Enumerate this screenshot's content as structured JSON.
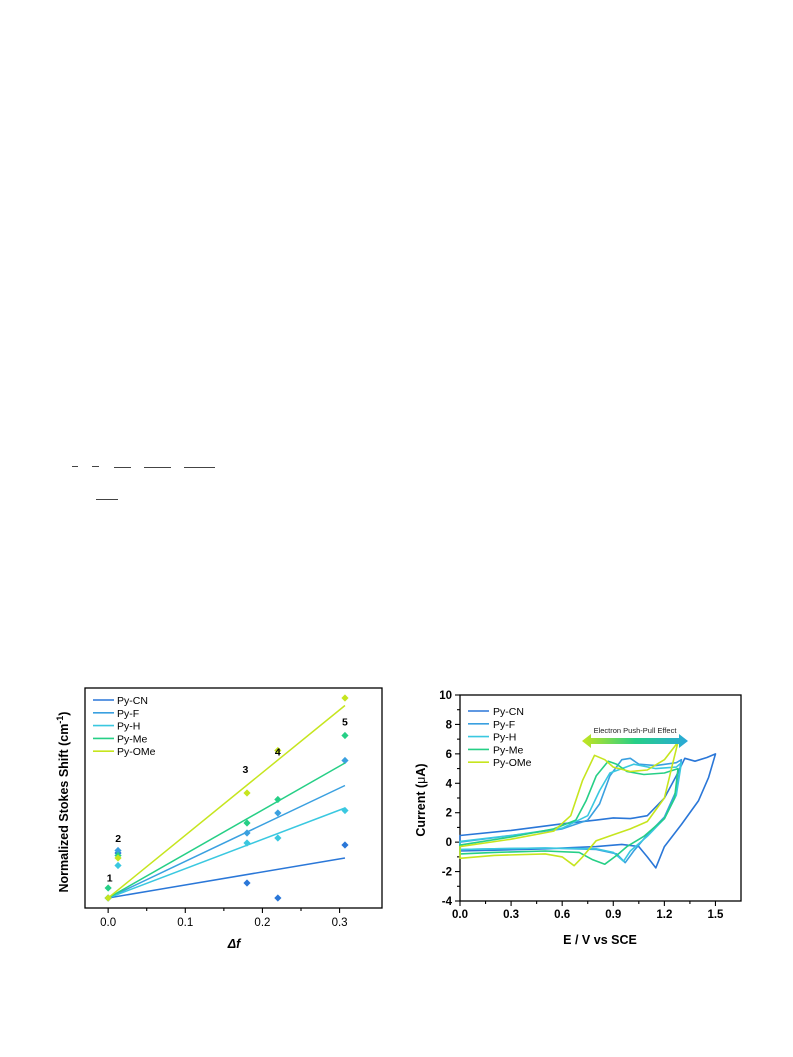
{
  "chart_data": [
    {
      "type": "scatter",
      "title": "",
      "xlabel": "Δf",
      "ylabel": "Normalized Stokes Shift (cm-1)",
      "ylabel_main": "Normalized Stokes Shift (cm",
      "ylabel_sup": "-1",
      "ylabel_end": ")",
      "xlim": [
        -0.03,
        0.355
      ],
      "ylim": [
        -0.02,
        0.42
      ],
      "xticks": [
        "0.0",
        "0.1",
        "0.2",
        "0.3"
      ],
      "legend_placement": "top-left",
      "point_labels": [
        {
          "text": "1",
          "x": 0.002,
          "y": 0.033
        },
        {
          "text": "2",
          "x": 0.013,
          "y": 0.112
        },
        {
          "text": "3",
          "x": 0.178,
          "y": 0.25
        },
        {
          "text": "4",
          "x": 0.22,
          "y": 0.285
        },
        {
          "text": "5",
          "x": 0.307,
          "y": 0.345
        }
      ],
      "series": [
        {
          "name": "Py-CN",
          "color": "#2a77d8",
          "x": [
            0.0,
            0.0128,
            0.18,
            0.22,
            0.307
          ],
          "y": [
            0.0,
            0.09,
            0.03,
            0.0,
            0.106
          ],
          "fit": [
            [
              0.0,
              0.0
            ],
            [
              0.307,
              0.08
            ]
          ]
        },
        {
          "name": "Py-F",
          "color": "#3aa0e0",
          "x": [
            0.0,
            0.0128,
            0.18,
            0.22,
            0.307
          ],
          "y": [
            0.0,
            0.095,
            0.13,
            0.17,
            0.275
          ],
          "fit": [
            [
              0.0,
              0.0
            ],
            [
              0.307,
              0.225
            ]
          ]
        },
        {
          "name": "Py-H",
          "color": "#3ac8e0",
          "x": [
            0.0,
            0.0128,
            0.18,
            0.22,
            0.307
          ],
          "y": [
            0.0,
            0.065,
            0.11,
            0.12,
            0.175
          ],
          "fit": [
            [
              0.0,
              0.0
            ],
            [
              0.307,
              0.18
            ]
          ]
        },
        {
          "name": "Py-Me",
          "color": "#26cf86",
          "x": [
            0.0,
            0.0128,
            0.18,
            0.22,
            0.307
          ],
          "y": [
            0.02,
            0.085,
            0.15,
            0.197,
            0.325
          ],
          "fit": [
            [
              0.0,
              0.0
            ],
            [
              0.307,
              0.27
            ]
          ]
        },
        {
          "name": "Py-OMe",
          "color": "#c6e51e",
          "x": [
            0.0,
            0.0128,
            0.18,
            0.22,
            0.307
          ],
          "y": [
            0.0,
            0.08,
            0.21,
            0.295,
            0.4
          ],
          "fit": [
            [
              0.0,
              0.0
            ],
            [
              0.307,
              0.385
            ]
          ]
        }
      ]
    },
    {
      "type": "line",
      "title": "",
      "xlabel": "E / V vs SCE",
      "ylabel": "Current (μA)",
      "ylabel_pre": "Current (",
      "ylabel_greek": "μ",
      "ylabel_post": "A)",
      "xlim": [
        0.0,
        1.65
      ],
      "ylim": [
        -4,
        10
      ],
      "xticks": [
        "0.0",
        "0.3",
        "0.6",
        "0.9",
        "1.2",
        "1.5"
      ],
      "yticks": [
        "-4",
        "-2",
        "0",
        "2",
        "4",
        "6",
        "8",
        "10"
      ],
      "annotation": "Electron Push-Pull Effect",
      "legend_placement": "top-left",
      "series": [
        {
          "name": "Py-CN",
          "color": "#2a77d8",
          "points": [
            [
              0.0,
              0.45
            ],
            [
              0.3,
              0.8
            ],
            [
              0.6,
              1.25
            ],
            [
              0.8,
              1.5
            ],
            [
              0.9,
              1.65
            ],
            [
              1.0,
              1.6
            ],
            [
              1.1,
              1.8
            ],
            [
              1.2,
              3.0
            ],
            [
              1.27,
              4.5
            ],
            [
              1.32,
              5.7
            ],
            [
              1.38,
              5.5
            ],
            [
              1.45,
              5.75
            ],
            [
              1.5,
              6.0
            ],
            [
              1.46,
              4.4
            ],
            [
              1.4,
              2.8
            ],
            [
              1.3,
              1.2
            ],
            [
              1.2,
              -0.3
            ],
            [
              1.15,
              -1.75
            ],
            [
              1.1,
              -1.0
            ],
            [
              1.05,
              -0.3
            ],
            [
              0.95,
              -0.15
            ],
            [
              0.8,
              -0.3
            ],
            [
              0.5,
              -0.45
            ],
            [
              0.2,
              -0.55
            ],
            [
              0.0,
              -0.6
            ]
          ]
        },
        {
          "name": "Py-F",
          "color": "#3aa0e0",
          "points": [
            [
              0.0,
              0.0
            ],
            [
              0.3,
              0.45
            ],
            [
              0.6,
              0.9
            ],
            [
              0.75,
              1.5
            ],
            [
              0.82,
              2.6
            ],
            [
              0.88,
              4.5
            ],
            [
              0.95,
              5.6
            ],
            [
              1.0,
              5.7
            ],
            [
              1.05,
              5.3
            ],
            [
              1.15,
              5.2
            ],
            [
              1.27,
              5.4
            ],
            [
              1.3,
              5.6
            ],
            [
              1.27,
              3.5
            ],
            [
              1.2,
              1.7
            ],
            [
              1.1,
              0.5
            ],
            [
              1.02,
              -0.6
            ],
            [
              0.97,
              -1.4
            ],
            [
              0.92,
              -0.8
            ],
            [
              0.8,
              -0.5
            ],
            [
              0.5,
              -0.4
            ],
            [
              0.2,
              -0.45
            ],
            [
              0.0,
              -0.5
            ]
          ]
        },
        {
          "name": "Py-H",
          "color": "#3ac8e0",
          "points": [
            [
              0.0,
              0.05
            ],
            [
              0.3,
              0.45
            ],
            [
              0.6,
              0.95
            ],
            [
              0.75,
              1.8
            ],
            [
              0.82,
              3.5
            ],
            [
              0.88,
              4.7
            ],
            [
              0.95,
              5.0
            ],
            [
              1.02,
              5.3
            ],
            [
              1.15,
              5.0
            ],
            [
              1.27,
              5.1
            ],
            [
              1.3,
              5.4
            ],
            [
              1.27,
              3.2
            ],
            [
              1.2,
              1.6
            ],
            [
              1.1,
              0.4
            ],
            [
              1.0,
              -0.6
            ],
            [
              0.96,
              -1.3
            ],
            [
              0.9,
              -0.7
            ],
            [
              0.8,
              -0.45
            ],
            [
              0.5,
              -0.4
            ],
            [
              0.2,
              -0.45
            ],
            [
              0.0,
              -0.5
            ]
          ]
        },
        {
          "name": "Py-Me",
          "color": "#26cf86",
          "points": [
            [
              0.0,
              -0.2
            ],
            [
              0.3,
              0.35
            ],
            [
              0.55,
              0.9
            ],
            [
              0.68,
              1.5
            ],
            [
              0.74,
              2.8
            ],
            [
              0.8,
              4.5
            ],
            [
              0.87,
              5.5
            ],
            [
              0.92,
              5.3
            ],
            [
              0.98,
              4.8
            ],
            [
              1.08,
              4.6
            ],
            [
              1.2,
              4.7
            ],
            [
              1.28,
              5.0
            ],
            [
              1.26,
              3.0
            ],
            [
              1.2,
              1.6
            ],
            [
              1.08,
              0.4
            ],
            [
              0.98,
              -0.3
            ],
            [
              0.92,
              -0.9
            ],
            [
              0.85,
              -1.5
            ],
            [
              0.78,
              -1.2
            ],
            [
              0.7,
              -0.7
            ],
            [
              0.5,
              -0.6
            ],
            [
              0.2,
              -0.7
            ],
            [
              0.0,
              -0.8
            ]
          ]
        },
        {
          "name": "Py-OMe",
          "color": "#c6e51e",
          "points": [
            [
              0.0,
              -0.3
            ],
            [
              0.3,
              0.2
            ],
            [
              0.55,
              0.75
            ],
            [
              0.65,
              1.8
            ],
            [
              0.72,
              4.2
            ],
            [
              0.79,
              5.9
            ],
            [
              0.85,
              5.6
            ],
            [
              0.9,
              5.1
            ],
            [
              1.0,
              4.8
            ],
            [
              1.1,
              4.9
            ],
            [
              1.2,
              5.6
            ],
            [
              1.28,
              6.8
            ],
            [
              1.25,
              5.4
            ],
            [
              1.2,
              3.0
            ],
            [
              1.1,
              1.4
            ],
            [
              1.0,
              0.9
            ],
            [
              0.9,
              0.5
            ],
            [
              0.8,
              0.1
            ],
            [
              0.72,
              -1.0
            ],
            [
              0.67,
              -1.6
            ],
            [
              0.6,
              -1.0
            ],
            [
              0.5,
              -0.8
            ],
            [
              0.2,
              -0.9
            ],
            [
              0.0,
              -1.1
            ]
          ]
        }
      ]
    }
  ]
}
